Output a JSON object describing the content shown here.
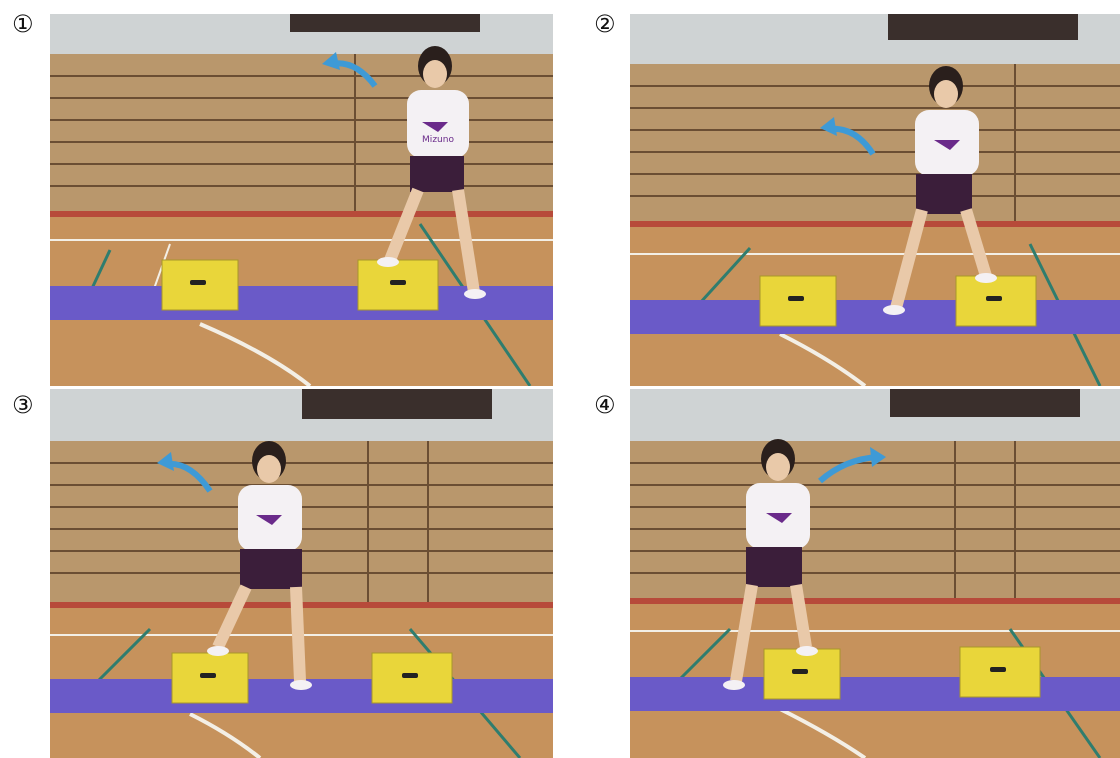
{
  "steps": [
    {
      "label": "①"
    },
    {
      "label": "②"
    },
    {
      "label": "③"
    },
    {
      "label": "④"
    }
  ],
  "shirt_text": "Mizuno",
  "colors": {
    "wall": "#b9976c",
    "wall_line": "#6b4e33",
    "ceiling": "#cfd3d4",
    "floor": "#c6925c",
    "court_line": "#f3efe6",
    "green_line": "#2f7d6e",
    "red_line": "#b74a3a",
    "mat": "#6a5ac8",
    "box": "#e9d63a",
    "arrow": "#3e9ad6",
    "shirt": "#f4f1f4",
    "shorts": "#3b1e3a",
    "logo": "#6a2a8a"
  },
  "icons": [
    "direction-arrow-icon"
  ]
}
